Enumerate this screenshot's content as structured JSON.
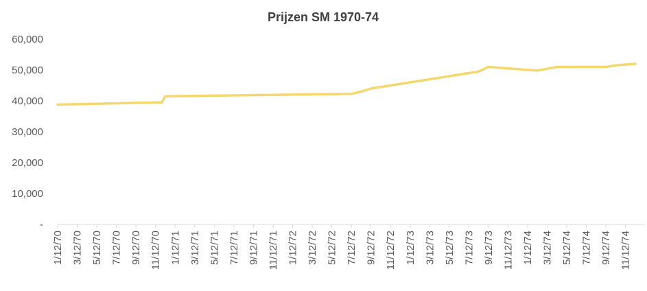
{
  "chart_data": {
    "type": "line",
    "title": "Prijzen SM 1970-74",
    "xlabel": "",
    "ylabel": "",
    "ylim": [
      0,
      60000
    ],
    "y_ticks": [
      {
        "value": 0,
        "label": "-"
      },
      {
        "value": 10000,
        "label": "10,000"
      },
      {
        "value": 20000,
        "label": "20,000"
      },
      {
        "value": 30000,
        "label": "30,000"
      },
      {
        "value": 40000,
        "label": "40,000"
      },
      {
        "value": 50000,
        "label": "50,000"
      },
      {
        "value": 60000,
        "label": "60,000"
      }
    ],
    "x_tick_labels": [
      "1/12/70",
      "3/12/70",
      "5/12/70",
      "7/12/70",
      "9/12/70",
      "11/12/70",
      "1/12/71",
      "3/12/71",
      "5/12/71",
      "7/12/71",
      "9/12/71",
      "11/12/71",
      "1/12/72",
      "3/12/72",
      "5/12/72",
      "7/12/72",
      "9/12/72",
      "11/12/72",
      "1/12/73",
      "3/12/73",
      "5/12/73",
      "7/12/73",
      "9/12/73",
      "11/12/73",
      "1/12/74",
      "3/12/74",
      "5/12/74",
      "7/12/74",
      "9/12/74",
      "11/12/74"
    ],
    "grid": false,
    "legend": "none",
    "line_color": "#F5D76E",
    "series": [
      {
        "x": [
          "1/12/70",
          "11/12/70",
          "12/1/70",
          "12/12/70",
          "7/12/72",
          "8/12/72",
          "9/12/72",
          "11/12/72",
          "1/12/73",
          "3/12/73",
          "5/12/73",
          "7/12/73",
          "8/12/73",
          "9/12/73",
          "2/12/74",
          "4/12/74",
          "6/12/74",
          "7/12/74",
          "9/12/74",
          "10/12/74",
          "12/12/74"
        ],
        "values": [
          38800,
          39500,
          39500,
          41500,
          42300,
          43000,
          44000,
          45000,
          46000,
          47000,
          48000,
          49000,
          49500,
          51000,
          49800,
          51000,
          51000,
          51000,
          51000,
          51500,
          52000
        ]
      }
    ]
  }
}
